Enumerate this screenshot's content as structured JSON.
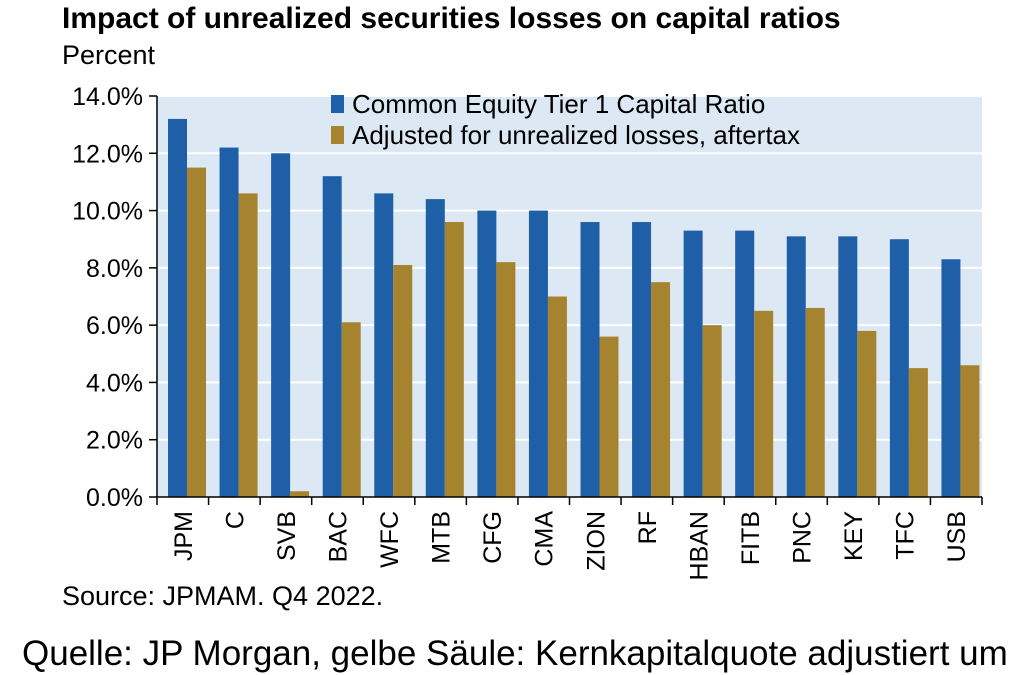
{
  "title": "Impact of unrealized securities losses on capital ratios",
  "subtitle": "Percent",
  "source": "Source: JPMAM. Q4 2022.",
  "caption": "Quelle: JP Morgan, gelbe Säule: Kernkapitalquote adjustiert um",
  "colors": {
    "plot_background": "#dce9f4",
    "gridline": "#ffffff",
    "cet1": "#1f5fa8",
    "adjusted": "#a5832f",
    "axis": "#000000"
  },
  "chart_data": {
    "type": "bar",
    "title": "Impact of unrealized securities losses on capital ratios",
    "ylabel": "Percent",
    "xlabel": "",
    "ylim": [
      0,
      14
    ],
    "yticks": [
      0,
      2,
      4,
      6,
      8,
      10,
      12,
      14
    ],
    "ytick_labels": [
      "0.0%",
      "2.0%",
      "4.0%",
      "6.0%",
      "8.0%",
      "10.0%",
      "12.0%",
      "14.0%"
    ],
    "grid": true,
    "legend_position": "top-center",
    "categories": [
      "JPM",
      "C",
      "SVB",
      "BAC",
      "WFC",
      "MTB",
      "CFG",
      "CMA",
      "ZION",
      "RF",
      "HBAN",
      "FITB",
      "PNC",
      "KEY",
      "TFC",
      "USB"
    ],
    "series": [
      {
        "name": "Common Equity Tier 1 Capital Ratio",
        "values": [
          13.2,
          12.2,
          12.0,
          11.2,
          10.6,
          10.4,
          10.0,
          10.0,
          9.6,
          9.6,
          9.3,
          9.3,
          9.1,
          9.1,
          9.0,
          8.3
        ]
      },
      {
        "name": "Adjusted for unrealized losses, aftertax",
        "values": [
          11.5,
          10.6,
          0.2,
          6.1,
          8.1,
          9.6,
          8.2,
          7.0,
          5.6,
          7.5,
          6.0,
          6.5,
          6.6,
          5.8,
          4.5,
          4.6
        ]
      }
    ]
  }
}
